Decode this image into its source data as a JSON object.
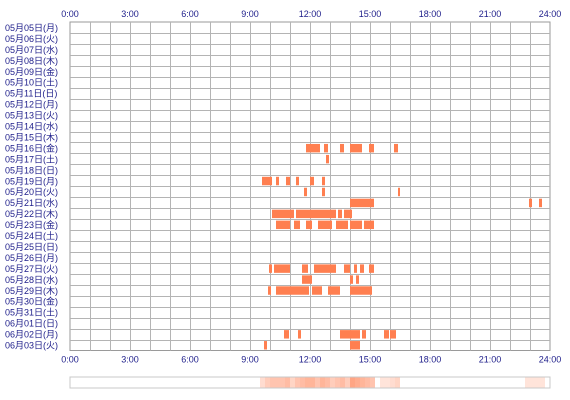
{
  "chart_data": {
    "type": "heatmap",
    "x_ticks": [
      "0:00",
      "3:00",
      "6:00",
      "9:00",
      "12:00",
      "15:00",
      "18:00",
      "21:00",
      "24:00"
    ],
    "x_range": [
      0,
      24
    ],
    "rows": [
      {
        "label": "05月05日(月)",
        "segments": []
      },
      {
        "label": "05月06日(火)",
        "segments": []
      },
      {
        "label": "05月07日(水)",
        "segments": []
      },
      {
        "label": "05月08日(木)",
        "segments": []
      },
      {
        "label": "05月09日(金)",
        "segments": []
      },
      {
        "label": "05月10日(土)",
        "segments": []
      },
      {
        "label": "05月11日(日)",
        "segments": []
      },
      {
        "label": "05月12日(月)",
        "segments": []
      },
      {
        "label": "05月13日(火)",
        "segments": []
      },
      {
        "label": "05月14日(水)",
        "segments": []
      },
      {
        "label": "05月15日(木)",
        "segments": []
      },
      {
        "label": "05月16日(金)",
        "segments": [
          [
            11.8,
            12.5
          ],
          [
            12.7,
            12.9
          ],
          [
            13.5,
            13.7
          ],
          [
            14.0,
            14.6
          ],
          [
            14.95,
            15.2
          ],
          [
            16.2,
            16.4
          ]
        ]
      },
      {
        "label": "05月17日(土)",
        "segments": [
          [
            12.8,
            12.95
          ]
        ]
      },
      {
        "label": "05月18日(日)",
        "segments": []
      },
      {
        "label": "05月19日(月)",
        "segments": [
          [
            9.6,
            10.1
          ],
          [
            10.3,
            10.45
          ],
          [
            10.8,
            11.0
          ],
          [
            11.3,
            11.45
          ],
          [
            12.0,
            12.2
          ],
          [
            12.6,
            12.75
          ]
        ]
      },
      {
        "label": "05月20日(火)",
        "segments": [
          [
            11.7,
            11.85
          ],
          [
            12.6,
            12.75
          ],
          [
            16.4,
            16.5
          ]
        ]
      },
      {
        "label": "05月21日(水)",
        "segments": [
          [
            14.0,
            15.2
          ],
          [
            22.95,
            23.1
          ],
          [
            23.45,
            23.6
          ]
        ]
      },
      {
        "label": "05月22日(木)",
        "segments": [
          [
            10.1,
            11.2
          ],
          [
            11.3,
            13.3
          ],
          [
            13.4,
            13.6
          ],
          [
            13.7,
            14.1
          ]
        ]
      },
      {
        "label": "05月23日(金)",
        "segments": [
          [
            10.3,
            11.0
          ],
          [
            11.2,
            11.5
          ],
          [
            11.8,
            12.1
          ],
          [
            12.4,
            13.1
          ],
          [
            13.3,
            13.9
          ],
          [
            14.0,
            14.6
          ],
          [
            14.7,
            15.2
          ]
        ]
      },
      {
        "label": "05月24日(土)",
        "segments": []
      },
      {
        "label": "05月25日(日)",
        "segments": []
      },
      {
        "label": "05月26日(月)",
        "segments": []
      },
      {
        "label": "05月27日(火)",
        "segments": [
          [
            9.95,
            10.1
          ],
          [
            10.2,
            11.0
          ],
          [
            11.6,
            11.9
          ],
          [
            12.2,
            13.3
          ],
          [
            13.7,
            14.0
          ],
          [
            14.2,
            14.35
          ],
          [
            14.5,
            14.7
          ],
          [
            14.95,
            15.2
          ]
        ]
      },
      {
        "label": "05月28日(水)",
        "segments": [
          [
            11.6,
            12.1
          ],
          [
            14.0,
            14.15
          ],
          [
            14.3,
            14.45
          ]
        ]
      },
      {
        "label": "05月29日(木)",
        "segments": [
          [
            9.9,
            10.05
          ],
          [
            10.3,
            11.95
          ],
          [
            12.1,
            12.6
          ],
          [
            12.9,
            13.5
          ],
          [
            14.0,
            15.1
          ]
        ]
      },
      {
        "label": "05月30日(金)",
        "segments": []
      },
      {
        "label": "05月31日(土)",
        "segments": []
      },
      {
        "label": "06月01日(日)",
        "segments": []
      },
      {
        "label": "06月02日(月)",
        "segments": [
          [
            10.7,
            10.95
          ],
          [
            11.4,
            11.55
          ],
          [
            13.5,
            14.5
          ],
          [
            14.6,
            14.8
          ],
          [
            15.7,
            15.95
          ],
          [
            16.0,
            16.3
          ]
        ]
      },
      {
        "label": "06月03日(火)",
        "segments": [
          [
            9.7,
            9.85
          ],
          [
            14.0,
            14.5
          ]
        ]
      }
    ],
    "bar_color": "#ff7f50",
    "grid": true
  }
}
